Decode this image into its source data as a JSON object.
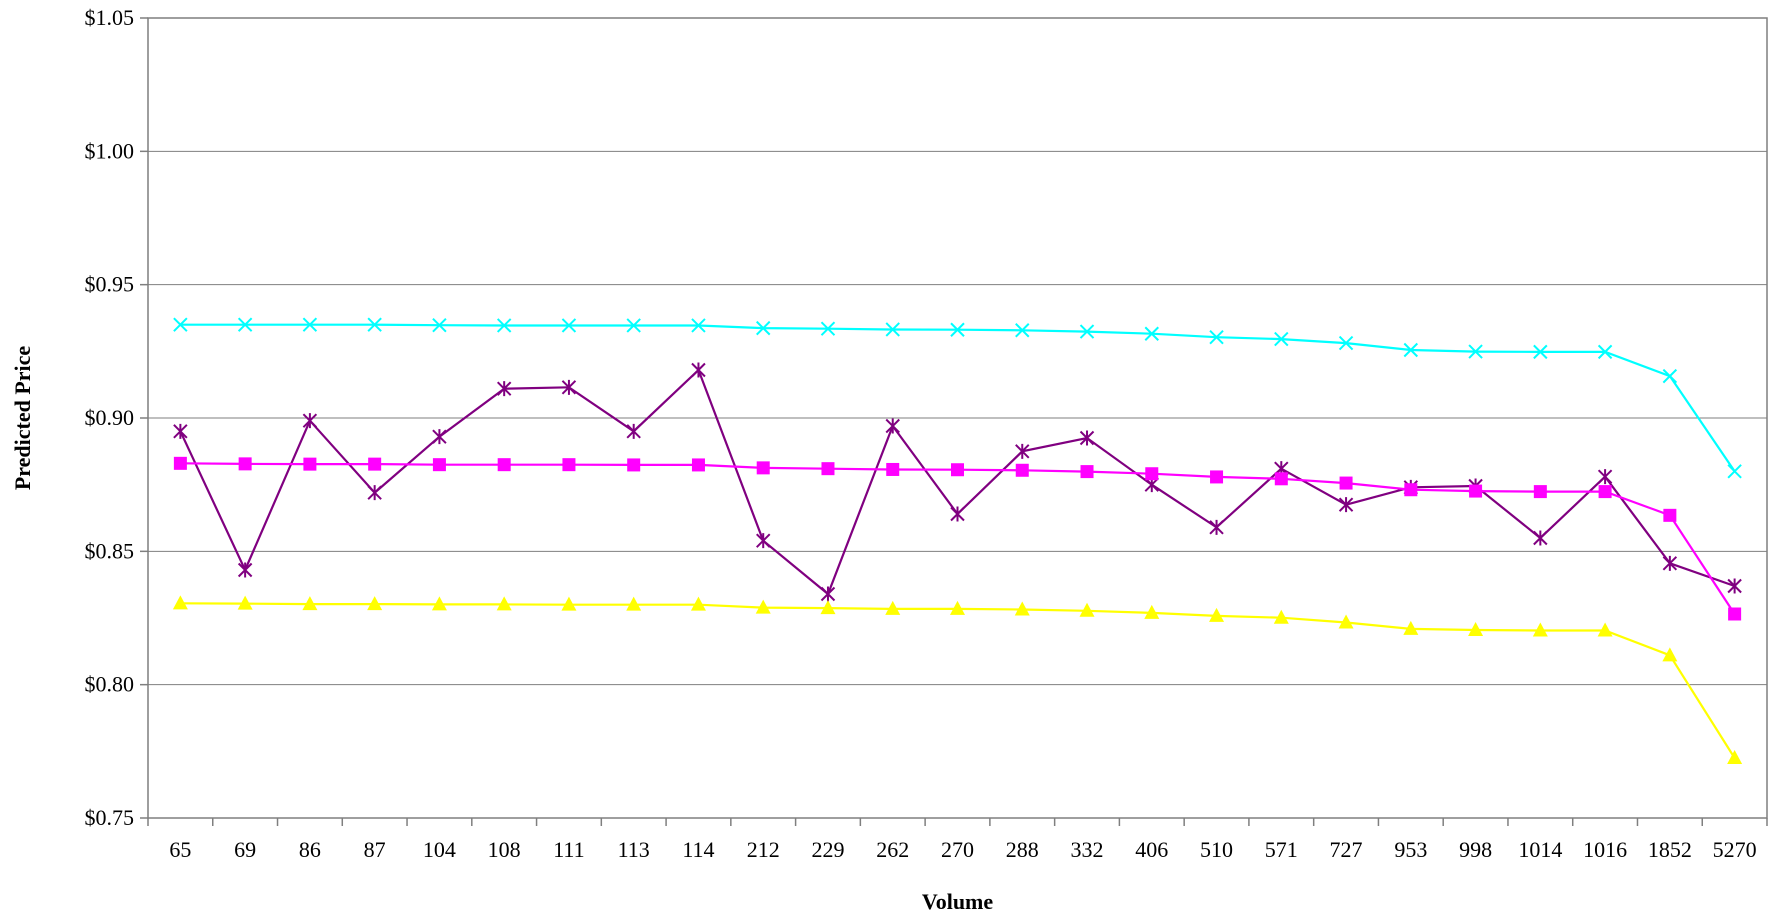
{
  "chart_data": {
    "type": "line",
    "title": "",
    "xlabel": "Volume",
    "ylabel": "Predicted Price",
    "categories": [
      "65",
      "69",
      "86",
      "87",
      "104",
      "108",
      "111",
      "113",
      "114",
      "212",
      "229",
      "262",
      "270",
      "288",
      "332",
      "406",
      "510",
      "571",
      "727",
      "953",
      "998",
      "1014",
      "1016",
      "1852",
      "5270"
    ],
    "ylim": [
      0.75,
      1.05
    ],
    "yticks": [
      0.75,
      0.8,
      0.85,
      0.9,
      0.95,
      1.0,
      1.05
    ],
    "ytick_labels": [
      "$0.75",
      "$0.80",
      "$0.85",
      "$0.90",
      "$0.95",
      "$1.00",
      "$1.05"
    ],
    "grid": "horizontal",
    "legend": "none",
    "series": [
      {
        "color": "#00ffff",
        "marker": "x",
        "values": [
          0.935,
          0.935,
          0.935,
          0.935,
          0.9348,
          0.9347,
          0.9347,
          0.9347,
          0.9347,
          0.9337,
          0.9335,
          0.9332,
          0.9331,
          0.9329,
          0.9324,
          0.9316,
          0.9303,
          0.9296,
          0.9281,
          0.9255,
          0.9249,
          0.9248,
          0.9248,
          0.9157,
          0.88
        ]
      },
      {
        "color": "#800080",
        "marker": "asterisk",
        "values": [
          0.895,
          0.843,
          0.899,
          0.872,
          0.893,
          0.911,
          0.9115,
          0.895,
          0.918,
          0.854,
          0.834,
          0.897,
          0.864,
          0.8875,
          0.8925,
          0.875,
          0.859,
          0.881,
          0.8675,
          0.874,
          0.8745,
          0.855,
          0.878,
          0.8455,
          0.837
        ]
      },
      {
        "color": "#ff00ff",
        "marker": "square",
        "values": [
          0.883,
          0.8828,
          0.8827,
          0.8827,
          0.8825,
          0.8825,
          0.8825,
          0.8824,
          0.8824,
          0.8813,
          0.881,
          0.8807,
          0.8806,
          0.8804,
          0.8799,
          0.8791,
          0.8779,
          0.8772,
          0.8756,
          0.8731,
          0.8726,
          0.8724,
          0.8724,
          0.8635,
          0.8265
        ]
      },
      {
        "color": "#ffff00",
        "marker": "triangle",
        "values": [
          0.8305,
          0.8304,
          0.8302,
          0.8302,
          0.8301,
          0.8301,
          0.83,
          0.83,
          0.83,
          0.8289,
          0.8287,
          0.8284,
          0.8284,
          0.8282,
          0.8277,
          0.8269,
          0.8258,
          0.8251,
          0.8233,
          0.8209,
          0.8205,
          0.8203,
          0.8203,
          0.811,
          0.7725
        ]
      }
    ]
  }
}
